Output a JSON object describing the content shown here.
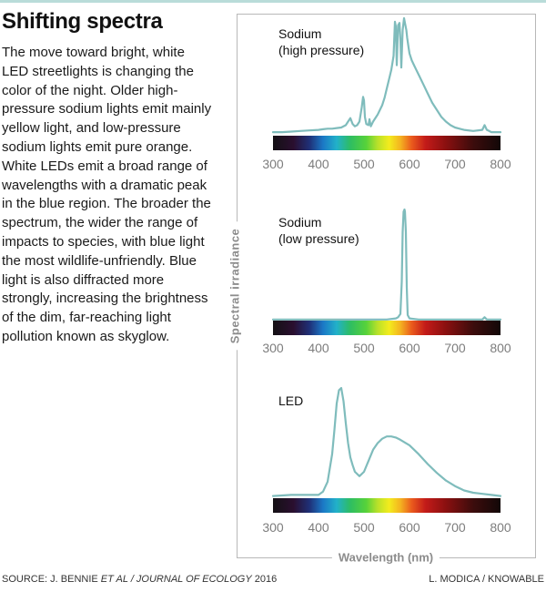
{
  "header": {
    "title": "Shifting spectra",
    "body": "The move toward bright, white LED streetlights is changing the color of the night. Older high-pressure sodium lights emit mainly yellow light, and low-pressure sodium lights emit pure orange. White LEDs emit a broad range of wavelengths with a dramatic peak in the blue region. The broader the spectrum, the wider the range of impacts to species, with blue light the most wildlife-unfriendly. Blue light is also diffracted more strongly, increasing the brightness of the dim, far-reaching light pollution known as skyglow."
  },
  "footer": {
    "source_prefix": "SOURCE: J. BENNIE ",
    "source_italic": "ET AL / JOURNAL OF ECOLOGY",
    "source_suffix": " 2016",
    "credit": "L. MODICA / KNOWABLE"
  },
  "colors": {
    "line": "#7fbcbc",
    "frame": "#b8b8b8",
    "axis_text": "#8c8c8c",
    "top_rule": "#b9dcd9"
  },
  "chart_data": [
    {
      "type": "line",
      "label_lines": [
        "Sodium",
        "(high pressure)"
      ],
      "xlabel": "Wavelength (nm)",
      "ylabel": "Spectral irradiance",
      "xlim": [
        300,
        800
      ],
      "xticks": [
        "300",
        "400",
        "500",
        "600",
        "700",
        "800"
      ],
      "x": [
        300,
        320,
        340,
        360,
        380,
        400,
        410,
        420,
        430,
        440,
        450,
        460,
        465,
        470,
        475,
        480,
        485,
        490,
        495,
        498,
        500,
        502,
        505,
        510,
        512,
        515,
        520,
        530,
        540,
        545,
        550,
        555,
        560,
        565,
        568,
        570,
        572,
        575,
        578,
        580,
        582,
        585,
        588,
        590,
        593,
        595,
        598,
        600,
        605,
        610,
        615,
        620,
        630,
        640,
        650,
        660,
        670,
        680,
        690,
        700,
        710,
        720,
        740,
        760,
        765,
        770,
        775,
        780,
        790,
        800
      ],
      "y": [
        0.03,
        0.03,
        0.035,
        0.04,
        0.045,
        0.05,
        0.055,
        0.06,
        0.06,
        0.065,
        0.07,
        0.09,
        0.12,
        0.15,
        0.1,
        0.08,
        0.09,
        0.12,
        0.24,
        0.33,
        0.3,
        0.16,
        0.1,
        0.09,
        0.14,
        0.08,
        0.12,
        0.18,
        0.26,
        0.32,
        0.4,
        0.48,
        0.56,
        0.68,
        0.97,
        0.93,
        0.6,
        0.94,
        0.96,
        0.82,
        0.58,
        0.9,
        1.0,
        0.96,
        0.9,
        0.83,
        0.75,
        0.7,
        0.64,
        0.6,
        0.56,
        0.52,
        0.44,
        0.36,
        0.28,
        0.22,
        0.16,
        0.12,
        0.09,
        0.07,
        0.06,
        0.05,
        0.04,
        0.05,
        0.09,
        0.05,
        0.04,
        0.03,
        0.03,
        0.03
      ],
      "ylim": [
        0,
        1
      ]
    },
    {
      "type": "line",
      "label_lines": [
        "Sodium",
        "(low pressure)"
      ],
      "xlabel": "Wavelength (nm)",
      "ylabel": "Spectral irradiance",
      "xlim": [
        300,
        800
      ],
      "xticks": [
        "300",
        "400",
        "500",
        "600",
        "700",
        "800"
      ],
      "x": [
        300,
        400,
        500,
        550,
        570,
        575,
        580,
        583,
        585,
        587,
        589,
        590,
        592,
        594,
        596,
        600,
        620,
        700,
        760,
        765,
        770,
        800
      ],
      "y": [
        0.01,
        0.01,
        0.01,
        0.01,
        0.02,
        0.03,
        0.06,
        0.35,
        0.8,
        0.98,
        1.0,
        0.98,
        0.8,
        0.3,
        0.05,
        0.02,
        0.01,
        0.01,
        0.01,
        0.03,
        0.01,
        0.01
      ],
      "ylim": [
        0,
        1
      ]
    },
    {
      "type": "line",
      "label_lines": [
        "LED"
      ],
      "xlabel": "Wavelength (nm)",
      "ylabel": "Spectral irradiance",
      "xlim": [
        300,
        800
      ],
      "xticks": [
        "300",
        "400",
        "500",
        "600",
        "700",
        "800"
      ],
      "x": [
        300,
        340,
        380,
        400,
        410,
        420,
        430,
        435,
        440,
        445,
        450,
        455,
        460,
        465,
        470,
        475,
        480,
        490,
        500,
        510,
        520,
        530,
        540,
        550,
        560,
        570,
        580,
        600,
        620,
        640,
        660,
        680,
        700,
        720,
        740,
        760,
        780,
        800
      ],
      "y": [
        0.02,
        0.03,
        0.03,
        0.03,
        0.06,
        0.15,
        0.4,
        0.62,
        0.86,
        0.98,
        1.0,
        0.88,
        0.68,
        0.5,
        0.37,
        0.3,
        0.24,
        0.2,
        0.24,
        0.34,
        0.44,
        0.5,
        0.54,
        0.56,
        0.56,
        0.55,
        0.53,
        0.48,
        0.4,
        0.31,
        0.23,
        0.16,
        0.11,
        0.07,
        0.05,
        0.04,
        0.03,
        0.02
      ],
      "ylim": [
        0,
        1
      ]
    }
  ]
}
